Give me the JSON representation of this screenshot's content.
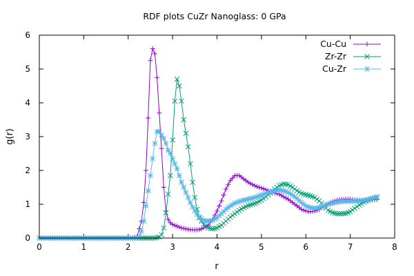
{
  "chart_data": {
    "type": "line",
    "title": "RDF plots CuZr Nanoglass: 0 GPa",
    "xlabel": "r",
    "ylabel": "g(r)",
    "xlim": [
      0,
      8
    ],
    "ylim": [
      0,
      6
    ],
    "xticks": [
      "0",
      "1",
      "2",
      "3",
      "4",
      "5",
      "6",
      "7",
      "8"
    ],
    "yticks": [
      "0",
      "1",
      "2",
      "3",
      "4",
      "5",
      "6"
    ],
    "grid": false,
    "legend_position": "top-right",
    "series": [
      {
        "name": "Cu-Cu",
        "color": "#9400d3",
        "marker": "plus",
        "points": [
          [
            0.0,
            0.0
          ],
          [
            2.1,
            0.0
          ],
          [
            2.2,
            0.05
          ],
          [
            2.3,
            0.5
          ],
          [
            2.35,
            1.05
          ],
          [
            2.4,
            2.0
          ],
          [
            2.45,
            3.55
          ],
          [
            2.5,
            5.25
          ],
          [
            2.55,
            5.6
          ],
          [
            2.6,
            5.45
          ],
          [
            2.65,
            4.75
          ],
          [
            2.7,
            3.7
          ],
          [
            2.75,
            2.65
          ],
          [
            2.8,
            1.5
          ],
          [
            2.85,
            0.8
          ],
          [
            2.9,
            0.55
          ],
          [
            2.95,
            0.45
          ],
          [
            3.0,
            0.4
          ],
          [
            3.1,
            0.35
          ],
          [
            3.2,
            0.3
          ],
          [
            3.3,
            0.27
          ],
          [
            3.4,
            0.25
          ],
          [
            3.5,
            0.24
          ],
          [
            3.6,
            0.25
          ],
          [
            3.7,
            0.3
          ],
          [
            3.8,
            0.38
          ],
          [
            3.9,
            0.55
          ],
          [
            4.0,
            0.8
          ],
          [
            4.1,
            1.1
          ],
          [
            4.2,
            1.45
          ],
          [
            4.3,
            1.7
          ],
          [
            4.4,
            1.85
          ],
          [
            4.5,
            1.85
          ],
          [
            4.6,
            1.75
          ],
          [
            4.7,
            1.65
          ],
          [
            4.8,
            1.58
          ],
          [
            4.9,
            1.52
          ],
          [
            5.0,
            1.48
          ],
          [
            5.1,
            1.43
          ],
          [
            5.2,
            1.38
          ],
          [
            5.3,
            1.33
          ],
          [
            5.4,
            1.3
          ],
          [
            5.5,
            1.22
          ],
          [
            5.6,
            1.15
          ],
          [
            5.7,
            1.05
          ],
          [
            5.8,
            0.95
          ],
          [
            5.9,
            0.85
          ],
          [
            6.0,
            0.8
          ],
          [
            6.1,
            0.78
          ],
          [
            6.2,
            0.8
          ],
          [
            6.3,
            0.85
          ],
          [
            6.4,
            0.93
          ],
          [
            6.5,
            1.02
          ],
          [
            6.6,
            1.08
          ],
          [
            6.7,
            1.12
          ],
          [
            6.8,
            1.14
          ],
          [
            6.9,
            1.15
          ],
          [
            7.0,
            1.15
          ],
          [
            7.1,
            1.13
          ],
          [
            7.2,
            1.12
          ],
          [
            7.3,
            1.11
          ],
          [
            7.4,
            1.12
          ],
          [
            7.5,
            1.13
          ],
          [
            7.6,
            1.14
          ]
        ]
      },
      {
        "name": "Zr-Zr",
        "color": "#009e73",
        "marker": "cross",
        "points": [
          [
            0.0,
            0.0
          ],
          [
            2.6,
            0.0
          ],
          [
            2.7,
            0.03
          ],
          [
            2.75,
            0.1
          ],
          [
            2.8,
            0.3
          ],
          [
            2.85,
            0.75
          ],
          [
            2.9,
            1.3
          ],
          [
            2.95,
            1.85
          ],
          [
            3.0,
            2.9
          ],
          [
            3.05,
            4.05
          ],
          [
            3.1,
            4.7
          ],
          [
            3.15,
            4.5
          ],
          [
            3.2,
            4.05
          ],
          [
            3.25,
            3.5
          ],
          [
            3.3,
            3.1
          ],
          [
            3.35,
            2.7
          ],
          [
            3.4,
            2.2
          ],
          [
            3.45,
            1.65
          ],
          [
            3.5,
            1.2
          ],
          [
            3.55,
            0.85
          ],
          [
            3.6,
            0.6
          ],
          [
            3.7,
            0.4
          ],
          [
            3.8,
            0.3
          ],
          [
            3.9,
            0.27
          ],
          [
            4.0,
            0.3
          ],
          [
            4.1,
            0.38
          ],
          [
            4.2,
            0.5
          ],
          [
            4.3,
            0.62
          ],
          [
            4.4,
            0.72
          ],
          [
            4.5,
            0.82
          ],
          [
            4.6,
            0.9
          ],
          [
            4.7,
            0.96
          ],
          [
            4.8,
            1.0
          ],
          [
            4.9,
            1.05
          ],
          [
            5.0,
            1.12
          ],
          [
            5.1,
            1.22
          ],
          [
            5.2,
            1.33
          ],
          [
            5.3,
            1.45
          ],
          [
            5.4,
            1.55
          ],
          [
            5.5,
            1.6
          ],
          [
            5.6,
            1.58
          ],
          [
            5.7,
            1.5
          ],
          [
            5.8,
            1.4
          ],
          [
            5.9,
            1.32
          ],
          [
            6.0,
            1.28
          ],
          [
            6.1,
            1.25
          ],
          [
            6.2,
            1.2
          ],
          [
            6.3,
            1.1
          ],
          [
            6.4,
            0.95
          ],
          [
            6.5,
            0.82
          ],
          [
            6.6,
            0.75
          ],
          [
            6.7,
            0.72
          ],
          [
            6.8,
            0.72
          ],
          [
            6.9,
            0.73
          ],
          [
            7.0,
            0.78
          ],
          [
            7.1,
            0.88
          ],
          [
            7.2,
            0.98
          ],
          [
            7.3,
            1.06
          ],
          [
            7.4,
            1.12
          ],
          [
            7.5,
            1.17
          ],
          [
            7.6,
            1.2
          ]
        ]
      },
      {
        "name": "Cu-Zr",
        "color": "#56b4e9",
        "marker": "star",
        "points": [
          [
            0.0,
            0.0
          ],
          [
            2.2,
            0.0
          ],
          [
            2.25,
            0.05
          ],
          [
            2.3,
            0.2
          ],
          [
            2.35,
            0.5
          ],
          [
            2.4,
            0.95
          ],
          [
            2.45,
            1.4
          ],
          [
            2.5,
            1.85
          ],
          [
            2.55,
            2.35
          ],
          [
            2.6,
            2.8
          ],
          [
            2.65,
            3.15
          ],
          [
            2.7,
            3.15
          ],
          [
            2.75,
            3.05
          ],
          [
            2.8,
            2.95
          ],
          [
            2.85,
            2.8
          ],
          [
            2.9,
            2.6
          ],
          [
            2.95,
            2.5
          ],
          [
            3.0,
            2.35
          ],
          [
            3.05,
            2.2
          ],
          [
            3.1,
            2.05
          ],
          [
            3.15,
            1.85
          ],
          [
            3.2,
            1.65
          ],
          [
            3.25,
            1.5
          ],
          [
            3.3,
            1.35
          ],
          [
            3.35,
            1.2
          ],
          [
            3.4,
            1.05
          ],
          [
            3.45,
            0.92
          ],
          [
            3.5,
            0.8
          ],
          [
            3.55,
            0.7
          ],
          [
            3.6,
            0.62
          ],
          [
            3.7,
            0.52
          ],
          [
            3.8,
            0.5
          ],
          [
            3.9,
            0.52
          ],
          [
            4.0,
            0.6
          ],
          [
            4.1,
            0.72
          ],
          [
            4.2,
            0.85
          ],
          [
            4.3,
            0.95
          ],
          [
            4.4,
            1.03
          ],
          [
            4.5,
            1.08
          ],
          [
            4.6,
            1.12
          ],
          [
            4.7,
            1.15
          ],
          [
            4.8,
            1.18
          ],
          [
            4.9,
            1.22
          ],
          [
            5.0,
            1.27
          ],
          [
            5.1,
            1.32
          ],
          [
            5.2,
            1.36
          ],
          [
            5.3,
            1.4
          ],
          [
            5.4,
            1.42
          ],
          [
            5.5,
            1.4
          ],
          [
            5.6,
            1.35
          ],
          [
            5.7,
            1.27
          ],
          [
            5.8,
            1.17
          ],
          [
            5.9,
            1.05
          ],
          [
            6.0,
            0.95
          ],
          [
            6.1,
            0.9
          ],
          [
            6.2,
            0.88
          ],
          [
            6.3,
            0.9
          ],
          [
            6.4,
            0.95
          ],
          [
            6.5,
            1.0
          ],
          [
            6.6,
            1.03
          ],
          [
            6.7,
            1.06
          ],
          [
            6.8,
            1.08
          ],
          [
            6.9,
            1.09
          ],
          [
            7.0,
            1.09
          ],
          [
            7.1,
            1.1
          ],
          [
            7.2,
            1.1
          ],
          [
            7.3,
            1.12
          ],
          [
            7.4,
            1.14
          ],
          [
            7.5,
            1.18
          ],
          [
            7.6,
            1.22
          ]
        ]
      }
    ]
  }
}
